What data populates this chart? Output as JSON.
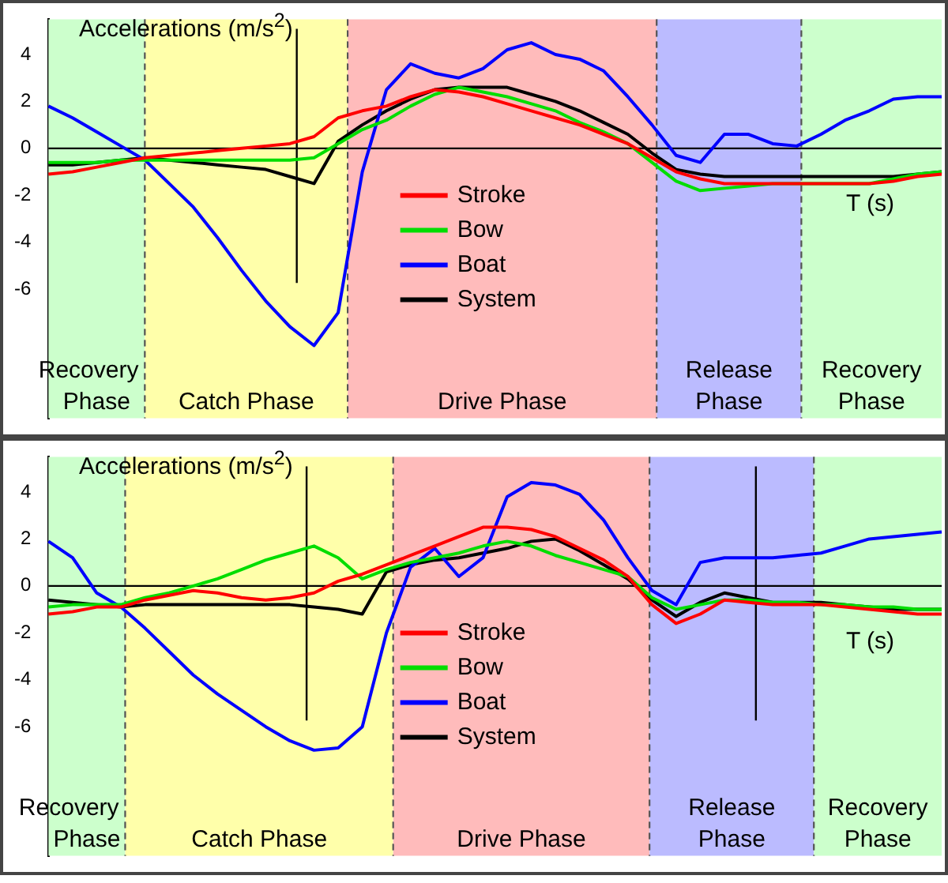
{
  "chart_data": [
    {
      "type": "line",
      "ylabel": "Accelerations (m/s$^{2}$)",
      "categories": [
        null,
        null,
        null,
        null,
        null,
        null,
        null,
        null,
        null,
        null,
        null,
        null,
        null,
        null,
        null,
        null,
        null,
        null,
        null,
        null,
        null,
        null,
        null,
        null,
        null,
        null,
        null,
        null,
        null,
        null,
        null,
        null,
        null,
        null,
        null,
        null,
        null,
        null
      ],
      "series": [
        {
          "name": "Stroke",
          "color": "#ff0000",
          "values": [
            -1.1,
            -1.0,
            -0.8,
            -0.6,
            -0.4,
            -0.3,
            -0.2,
            -0.1,
            0,
            0.1,
            0.2,
            0.5,
            1.3,
            1.6,
            1.8,
            2.2,
            2.5,
            2.4,
            2.2,
            1.9,
            1.6,
            1.3,
            1.0,
            0.6,
            0.2,
            -0.4,
            -1.0,
            -1.3,
            -1.5,
            -1.5,
            -1.5,
            -1.5,
            -1.5,
            -1.5,
            -1.5,
            -1.4,
            -1.2,
            -1.1
          ]
        },
        {
          "name": "Bow",
          "color": "#00dd00",
          "values": [
            -0.6,
            -0.6,
            -0.6,
            -0.5,
            -0.5,
            -0.5,
            -0.5,
            -0.5,
            -0.5,
            -0.5,
            -0.5,
            -0.4,
            0.2,
            0.8,
            1.2,
            1.8,
            2.3,
            2.6,
            2.4,
            2.2,
            1.9,
            1.6,
            1.1,
            0.7,
            0.2,
            -0.6,
            -1.4,
            -1.8,
            -1.7,
            -1.6,
            -1.5,
            -1.5,
            -1.5,
            -1.5,
            -1.5,
            -1.3,
            -1.1,
            -1.0
          ]
        },
        {
          "name": "Boat",
          "color": "#0000ff",
          "values": [
            1.8,
            1.3,
            0.7,
            0.1,
            -0.5,
            -1.5,
            -2.5,
            -3.8,
            -5.2,
            -6.5,
            -7.6,
            -8.4,
            -7.0,
            -1.0,
            2.5,
            3.6,
            3.2,
            3.0,
            3.4,
            4.2,
            4.5,
            4.0,
            3.8,
            3.3,
            2.2,
            1.0,
            -0.3,
            -0.6,
            0.6,
            0.6,
            0.2,
            0.1,
            0.6,
            1.2,
            1.6,
            2.1,
            2.2,
            2.2
          ]
        },
        {
          "name": "System",
          "color": "#000000",
          "values": [
            -0.7,
            -0.7,
            -0.6,
            -0.5,
            -0.4,
            -0.5,
            -0.6,
            -0.7,
            -0.8,
            -0.9,
            -1.2,
            -1.5,
            0.3,
            1.0,
            1.6,
            2.1,
            2.5,
            2.6,
            2.6,
            2.6,
            2.3,
            2.0,
            1.6,
            1.1,
            0.6,
            -0.2,
            -0.9,
            -1.1,
            -1.2,
            -1.2,
            -1.2,
            -1.2,
            -1.2,
            -1.2,
            -1.2,
            -1.2,
            -1.1,
            -1.0
          ]
        }
      ],
      "ylim": [
        -11.5,
        5.5
      ],
      "yticks": [
        -6,
        -4,
        -2,
        0,
        2,
        4
      ],
      "tick_labels": "y",
      "grid": false,
      "legend": "center",
      "marker": "none",
      "ref_lines": [
        {
          "axis": "y",
          "value": 0,
          "color": "#000000"
        }
      ],
      "annotations": [
        "Recovery Phase",
        "Catch Phase",
        "Drive Phase",
        "Release Phase",
        "Recovery Phase",
        "T (s)"
      ]
    },
    {
      "type": "line",
      "ylabel": "Accelerations (m/s$^{2}$)",
      "categories": [
        null,
        null,
        null,
        null,
        null,
        null,
        null,
        null,
        null,
        null,
        null,
        null,
        null,
        null,
        null,
        null,
        null,
        null,
        null,
        null,
        null,
        null,
        null,
        null,
        null,
        null,
        null,
        null,
        null,
        null,
        null,
        null,
        null,
        null,
        null,
        null,
        null,
        null
      ],
      "series": [
        {
          "name": "Stroke",
          "color": "#ff0000",
          "values": [
            -1.2,
            -1.1,
            -0.9,
            -0.9,
            -0.6,
            -0.4,
            -0.2,
            -0.3,
            -0.5,
            -0.6,
            -0.5,
            -0.3,
            0.2,
            0.5,
            0.9,
            1.3,
            1.7,
            2.1,
            2.5,
            2.5,
            2.4,
            2.1,
            1.6,
            1.1,
            0.4,
            -0.8,
            -1.6,
            -1.2,
            -0.6,
            -0.7,
            -0.8,
            -0.8,
            -0.8,
            -0.9,
            -1.0,
            -1.1,
            -1.2,
            -1.2
          ]
        },
        {
          "name": "Bow",
          "color": "#00dd00",
          "values": [
            -0.9,
            -0.8,
            -0.8,
            -0.8,
            -0.5,
            -0.3,
            0,
            0.3,
            0.7,
            1.1,
            1.4,
            1.7,
            1.2,
            0.3,
            0.7,
            1.0,
            1.2,
            1.4,
            1.7,
            1.9,
            1.7,
            1.3,
            1.0,
            0.7,
            0.4,
            -0.5,
            -1.0,
            -0.8,
            -0.6,
            -0.6,
            -0.7,
            -0.7,
            -0.8,
            -0.8,
            -0.9,
            -0.9,
            -1.0,
            -1.0
          ]
        },
        {
          "name": "Boat",
          "color": "#0000ff",
          "values": [
            1.9,
            1.2,
            -0.3,
            -0.9,
            -1.8,
            -2.8,
            -3.8,
            -4.6,
            -5.3,
            -6.0,
            -6.6,
            -7.0,
            -6.9,
            -6.0,
            -2.0,
            0.8,
            1.6,
            0.4,
            1.2,
            3.8,
            4.4,
            4.3,
            3.9,
            2.8,
            1.2,
            -0.2,
            -0.8,
            1.0,
            1.2,
            1.2,
            1.2,
            1.3,
            1.4,
            1.7,
            2.0,
            2.1,
            2.2,
            2.3
          ]
        },
        {
          "name": "System",
          "color": "#000000",
          "values": [
            -0.6,
            -0.7,
            -0.8,
            -0.9,
            -0.8,
            -0.8,
            -0.8,
            -0.8,
            -0.8,
            -0.8,
            -0.8,
            -0.9,
            -1.0,
            -1.2,
            0.6,
            0.9,
            1.1,
            1.2,
            1.4,
            1.6,
            1.9,
            2.0,
            1.5,
            0.9,
            0.3,
            -0.6,
            -1.3,
            -0.7,
            -0.3,
            -0.5,
            -0.7,
            -0.7,
            -0.7,
            -0.8,
            -0.9,
            -1.0,
            -1.0,
            -1.0
          ]
        }
      ],
      "ylim": [
        -11.5,
        5.5
      ],
      "yticks": [
        -6,
        -4,
        -2,
        0,
        2,
        4
      ],
      "tick_labels": "y",
      "grid": false,
      "legend": "center",
      "marker": "none",
      "ref_lines": [
        {
          "axis": "y",
          "value": 0,
          "color": "#000000"
        }
      ],
      "annotations": [
        "Recovery Phase",
        "Catch Phase",
        "Drive Phase",
        "Release Phase",
        "Recovery Phase",
        "T (s)"
      ]
    }
  ]
}
